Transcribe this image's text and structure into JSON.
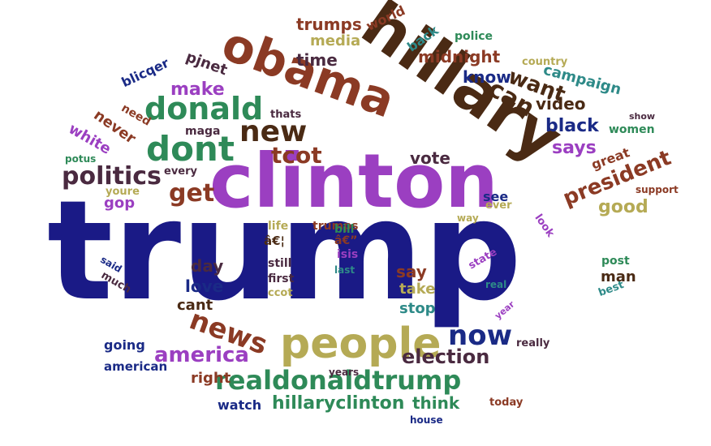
{
  "cloud": {
    "words": [
      {
        "text": "trump",
        "color": "#1a1a86"
      },
      {
        "text": "clinton",
        "color": "#9b3fc1"
      },
      {
        "text": "hillary",
        "color": "#4a2a14"
      },
      {
        "text": "obama",
        "color": "#8b3a24"
      },
      {
        "text": "people",
        "color": "#b5aa55"
      },
      {
        "text": "new",
        "color": "#4a2a14"
      },
      {
        "text": "donald",
        "color": "#2e8a58"
      },
      {
        "text": "dont",
        "color": "#2e8a58"
      },
      {
        "text": "realdonaldtrump",
        "color": "#2e8a58"
      },
      {
        "text": "now",
        "color": "#1a2a86"
      },
      {
        "text": "news",
        "color": "#8b3a24"
      },
      {
        "text": "politics",
        "color": "#4a2a40"
      },
      {
        "text": "get",
        "color": "#8b3a24"
      },
      {
        "text": "america",
        "color": "#9b3fc1"
      },
      {
        "text": "election",
        "color": "#4a2a40"
      },
      {
        "text": "president",
        "color": "#8b3a24"
      },
      {
        "text": "can",
        "color": "#4a2a14"
      },
      {
        "text": "tcot",
        "color": "#8b3a24"
      },
      {
        "text": "black",
        "color": "#1a2a86"
      },
      {
        "text": "says",
        "color": "#9b3fc1"
      },
      {
        "text": "want",
        "color": "#4a2a14"
      },
      {
        "text": "vote",
        "color": "#4a2a40"
      },
      {
        "text": "good",
        "color": "#b5aa55"
      },
      {
        "text": "make",
        "color": "#9b3fc1"
      },
      {
        "text": "know",
        "color": "#1a2a86"
      },
      {
        "text": "time",
        "color": "#4a2a40"
      },
      {
        "text": "midnight",
        "color": "#8b3a24"
      },
      {
        "text": "video",
        "color": "#4a2a14"
      },
      {
        "text": "campaign",
        "color": "#2e8a88"
      },
      {
        "text": "hillaryclinton",
        "color": "#2e8a58"
      },
      {
        "text": "right",
        "color": "#8b3a24"
      },
      {
        "text": "day",
        "color": "#4a2a40"
      },
      {
        "text": "love",
        "color": "#1a2a86"
      },
      {
        "text": "cant",
        "color": "#4a2a14"
      },
      {
        "text": "say",
        "color": "#8b3a24"
      },
      {
        "text": "take",
        "color": "#b5aa55"
      },
      {
        "text": "stop",
        "color": "#2e8a88"
      },
      {
        "text": "think",
        "color": "#2e8a58"
      },
      {
        "text": "watch",
        "color": "#1a2a86"
      },
      {
        "text": "going",
        "color": "#1a2a86"
      },
      {
        "text": "american",
        "color": "#1a2a86"
      },
      {
        "text": "media",
        "color": "#b5aa55"
      },
      {
        "text": "trumps",
        "color": "#8b3a24"
      },
      {
        "text": "pjnet",
        "color": "#4a2a40"
      },
      {
        "text": "gop",
        "color": "#9b3fc1"
      },
      {
        "text": "never",
        "color": "#8b3a24"
      },
      {
        "text": "white",
        "color": "#9b3fc1"
      },
      {
        "text": "maga",
        "color": "#4a2a40"
      },
      {
        "text": "man",
        "color": "#4a2a14"
      },
      {
        "text": "women",
        "color": "#2e8a58"
      },
      {
        "text": "great",
        "color": "#8b3a24"
      },
      {
        "text": "see",
        "color": "#1a2a86"
      },
      {
        "text": "back",
        "color": "#2e8a88"
      },
      {
        "text": "world",
        "color": "#8b3a24"
      },
      {
        "text": "police",
        "color": "#2e8a58"
      },
      {
        "text": "country",
        "color": "#b5aa55"
      },
      {
        "text": "blicqer",
        "color": "#1a2a86"
      },
      {
        "text": "need",
        "color": "#8b3a24"
      },
      {
        "text": "thats",
        "color": "#4a2a40"
      },
      {
        "text": "every",
        "color": "#4a2a40"
      },
      {
        "text": "youre",
        "color": "#b5aa55"
      },
      {
        "text": "potus",
        "color": "#2e8a58"
      },
      {
        "text": "show",
        "color": "#4a2a40"
      },
      {
        "text": "support",
        "color": "#8b3a24"
      },
      {
        "text": "life",
        "color": "#b5aa55"
      },
      {
        "text": "trumps",
        "color": "#8b3a24"
      },
      {
        "text": "bill",
        "color": "#2e8a58"
      },
      {
        "text": "â€¦",
        "color": "#4a2a14"
      },
      {
        "text": "â€”",
        "color": "#8b3a24"
      },
      {
        "text": "isis",
        "color": "#9b3fc1"
      },
      {
        "text": "still",
        "color": "#4a2a40"
      },
      {
        "text": "first",
        "color": "#4a2a40"
      },
      {
        "text": "ccot",
        "color": "#b5aa55"
      },
      {
        "text": "last",
        "color": "#2e8a88"
      },
      {
        "text": "said",
        "color": "#1a2a86"
      },
      {
        "text": "much",
        "color": "#4a2a40"
      },
      {
        "text": "ever",
        "color": "#b5aa55"
      },
      {
        "text": "way",
        "color": "#b5aa55"
      },
      {
        "text": "look",
        "color": "#9b3fc1"
      },
      {
        "text": "state",
        "color": "#9b3fc1"
      },
      {
        "text": "real",
        "color": "#2e8a88"
      },
      {
        "text": "post",
        "color": "#2e8a58"
      },
      {
        "text": "best",
        "color": "#2e8a88"
      },
      {
        "text": "year",
        "color": "#9b3fc1"
      },
      {
        "text": "really",
        "color": "#4a2a40"
      },
      {
        "text": "years",
        "color": "#4a2a40"
      },
      {
        "text": "today",
        "color": "#8b3a24"
      },
      {
        "text": "house",
        "color": "#1a2a86"
      }
    ]
  }
}
